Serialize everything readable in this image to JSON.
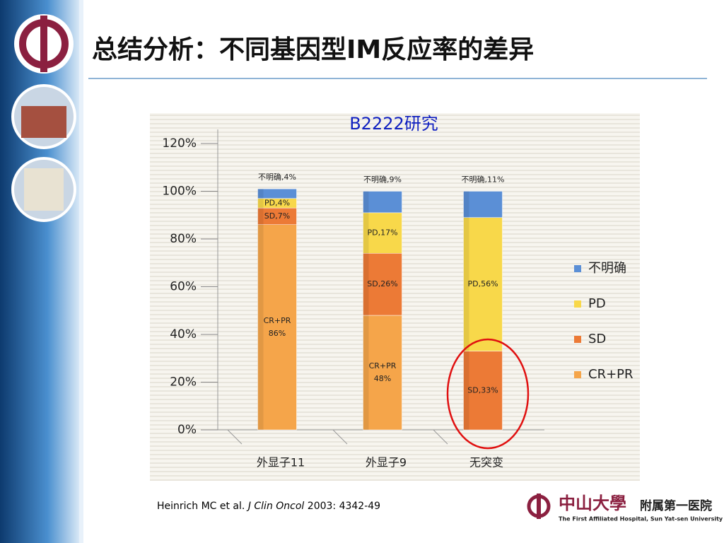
{
  "chart_data": {
    "type": "stacked_bar",
    "title": "总结分析：不同基因型IM反应率的差异",
    "subtitle": "B2222研究",
    "categories": [
      "外显子11",
      "外显子9",
      "无突变"
    ],
    "series": [
      {
        "name": "CR+PR",
        "color": "#f5a54a",
        "values": [
          86,
          48,
          null
        ],
        "value_labels": [
          [
            "CR+PR",
            "86%"
          ],
          [
            "CR+PR",
            "48%"
          ],
          null
        ]
      },
      {
        "name": "SD",
        "color": "#ec7a36",
        "values": [
          7,
          26,
          33
        ],
        "value_labels": [
          "SD,7%",
          "SD,26%",
          "SD,33%"
        ]
      },
      {
        "name": "PD",
        "color": "#f8d84a",
        "values": [
          4,
          17,
          56
        ],
        "value_labels": [
          "PD,4%",
          "PD,17%",
          "PD,56%"
        ]
      },
      {
        "name": "不明确",
        "color": "#5b8fd6",
        "values": [
          4,
          9,
          11
        ],
        "value_labels": [
          "不明确,4%",
          "不明确,9%",
          "不明确,11%"
        ]
      }
    ],
    "ylim": [
      0,
      120
    ],
    "yticks": [
      {
        "value": 0,
        "label": "0%"
      },
      {
        "value": 20,
        "label": "20%"
      },
      {
        "value": 40,
        "label": "40%"
      },
      {
        "value": 60,
        "label": "60%"
      },
      {
        "value": 80,
        "label": "80%"
      },
      {
        "value": 100,
        "label": "100%"
      },
      {
        "value": 120,
        "label": "120%"
      }
    ],
    "legend": "right",
    "citation": {
      "authors": "Heinrich MC et al.",
      "journal": "J Clin Oncol",
      "detail": "2003: 4342-49"
    },
    "logo": {
      "name": "中山大學",
      "unit": "附属第一医院",
      "english": "The First Affiliated Hospital, Sun Yat-sen University"
    }
  }
}
